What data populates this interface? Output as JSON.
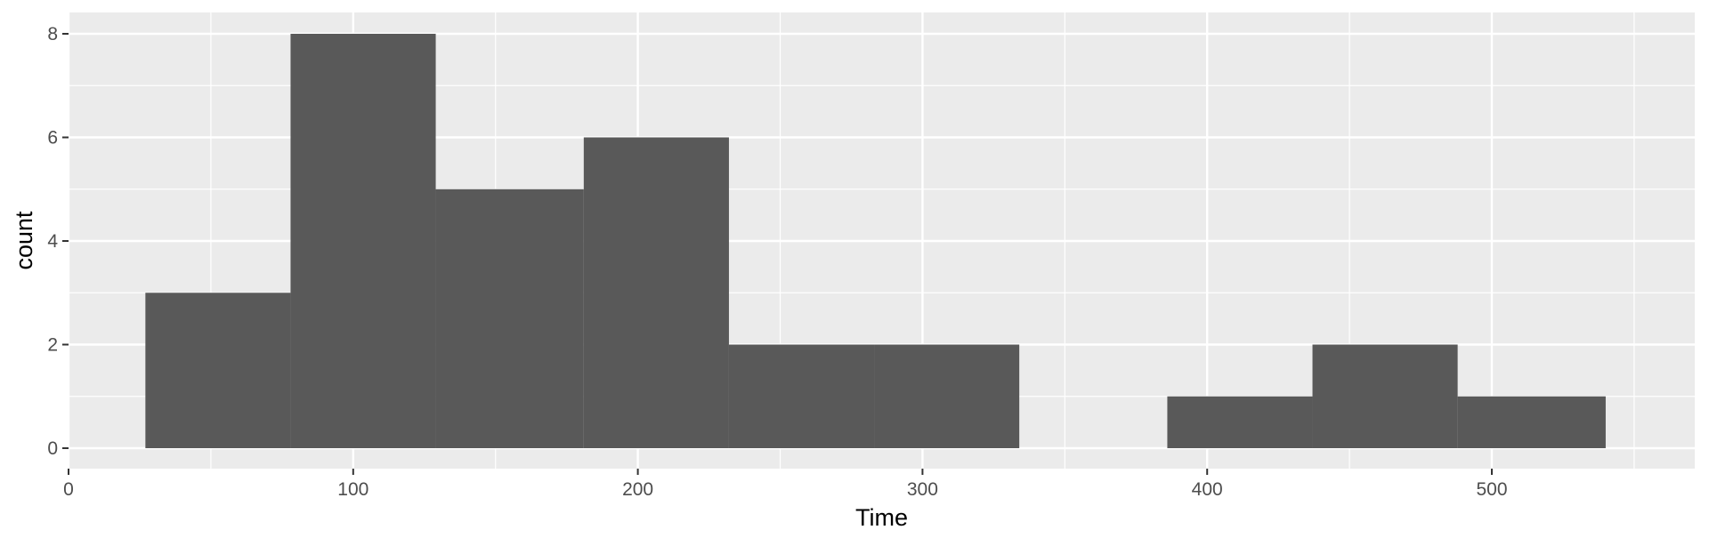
{
  "chart_data": {
    "type": "bar",
    "xlabel": "Time",
    "ylabel": "count",
    "xlim": [
      0,
      560
    ],
    "ylim": [
      0,
      8
    ],
    "x_ticks": [
      0,
      100,
      200,
      300,
      400,
      500
    ],
    "y_ticks": [
      0,
      2,
      4,
      6,
      8
    ],
    "grid": true,
    "bins": [
      {
        "x0": 27,
        "x1": 78,
        "count": 3
      },
      {
        "x0": 78,
        "x1": 129,
        "count": 8
      },
      {
        "x0": 129,
        "x1": 181,
        "count": 5
      },
      {
        "x0": 181,
        "x1": 232,
        "count": 6
      },
      {
        "x0": 232,
        "x1": 283,
        "count": 2
      },
      {
        "x0": 283,
        "x1": 334,
        "count": 2
      },
      {
        "x0": 334,
        "x1": 386,
        "count": 0
      },
      {
        "x0": 386,
        "x1": 437,
        "count": 1
      },
      {
        "x0": 437,
        "x1": 488,
        "count": 2
      },
      {
        "x0": 488,
        "x1": 540,
        "count": 1
      }
    ]
  },
  "colors": {
    "panel": "#ebebeb",
    "grid": "#ffffff",
    "bar": "#595959",
    "axis": "#333333"
  }
}
